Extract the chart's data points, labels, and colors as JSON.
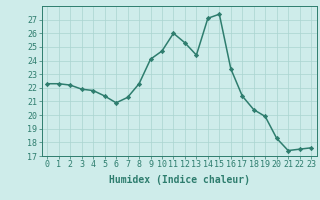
{
  "x": [
    0,
    1,
    2,
    3,
    4,
    5,
    6,
    7,
    8,
    9,
    10,
    11,
    12,
    13,
    14,
    15,
    16,
    17,
    18,
    19,
    20,
    21,
    22,
    23
  ],
  "y": [
    22.3,
    22.3,
    22.2,
    21.9,
    21.8,
    21.4,
    20.9,
    21.3,
    22.3,
    24.1,
    24.7,
    26.0,
    25.3,
    24.4,
    27.1,
    27.4,
    23.4,
    21.4,
    20.4,
    19.9,
    18.3,
    17.4,
    17.5,
    17.6
  ],
  "line_color": "#2e7d6e",
  "marker": "D",
  "marker_size": 2.2,
  "bg_color": "#ceecea",
  "grid_color": "#aad4d0",
  "tick_color": "#2e7d6e",
  "label_color": "#2e7d6e",
  "xlabel": "Humidex (Indice chaleur)",
  "ylim": [
    17,
    28
  ],
  "xlim": [
    -0.5,
    23.5
  ],
  "yticks": [
    17,
    18,
    19,
    20,
    21,
    22,
    23,
    24,
    25,
    26,
    27
  ],
  "xticks": [
    0,
    1,
    2,
    3,
    4,
    5,
    6,
    7,
    8,
    9,
    10,
    11,
    12,
    13,
    14,
    15,
    16,
    17,
    18,
    19,
    20,
    21,
    22,
    23
  ],
  "xlabel_fontsize": 7.0,
  "tick_fontsize": 6.0,
  "line_width": 1.1
}
